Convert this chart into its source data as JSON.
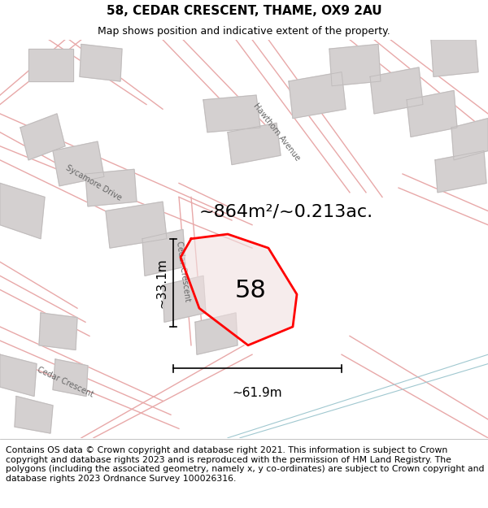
{
  "title": "58, CEDAR CRESCENT, THAME, OX9 2AU",
  "subtitle": "Map shows position and indicative extent of the property.",
  "footer": "Contains OS data © Crown copyright and database right 2021. This information is subject to Crown copyright and database rights 2023 and is reproduced with the permission of HM Land Registry. The polygons (including the associated geometry, namely x, y co-ordinates) are subject to Crown copyright and database rights 2023 Ordnance Survey 100026316.",
  "area_label": "~864m²/~0.213ac.",
  "number_label": "58",
  "width_label": "~61.9m",
  "height_label": "~33.1m",
  "map_background": "#f7f5f5",
  "road_color": "#e8a8a8",
  "road_fill": "#eddede",
  "block_color": "#d4d0d0",
  "block_edge": "#c0bcbc",
  "title_fontsize": 11,
  "subtitle_fontsize": 9,
  "area_fontsize": 16,
  "number_fontsize": 22,
  "dim_fontsize": 11,
  "street_fontsize": 7,
  "footer_fontsize": 7.8,
  "property_color": "#ff0000",
  "property_fill": "#f0e0e0",
  "blue_color": "#a0c8d0"
}
